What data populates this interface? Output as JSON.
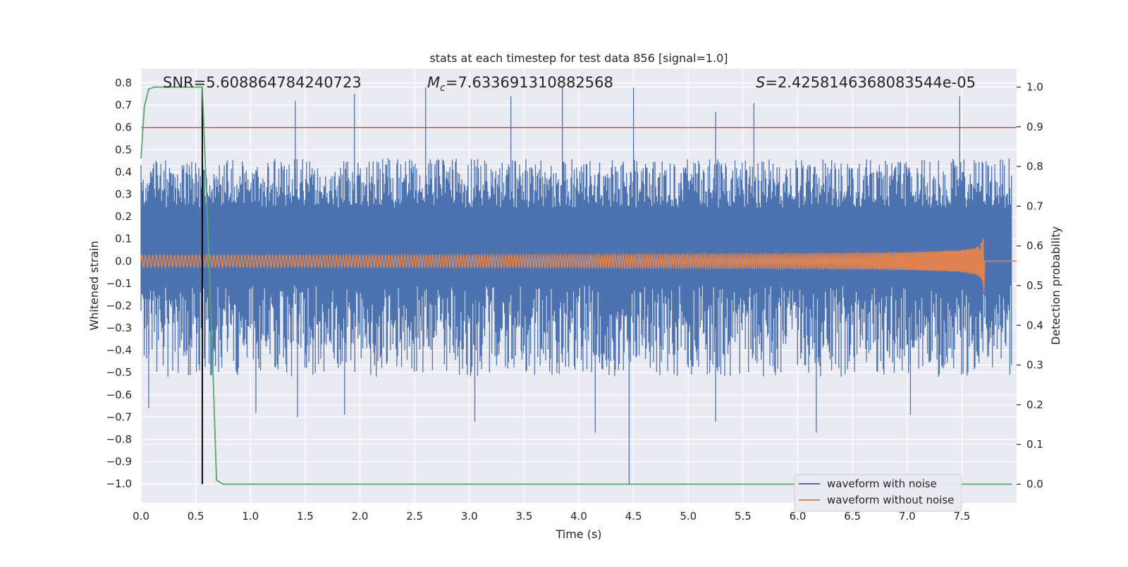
{
  "chart_data": {
    "type": "line",
    "title": "stats at each timestep for test data 856 [signal=1.0]",
    "xlabel": "Time (s)",
    "ylabel_left": "Whitened strain",
    "ylabel_right": "Detection probability",
    "xlim": [
      0.0,
      8.0
    ],
    "ylim_left": [
      -1.085,
      0.865
    ],
    "ylim_right": [
      -0.047,
      1.047
    ],
    "x_ticks": [
      "0.0",
      "0.5",
      "1.0",
      "1.5",
      "2.0",
      "2.5",
      "3.0",
      "3.5",
      "4.0",
      "4.5",
      "5.0",
      "5.5",
      "6.0",
      "6.5",
      "7.0",
      "7.5"
    ],
    "y_ticks_left": [
      "0.8",
      "0.7",
      "0.6",
      "0.5",
      "0.4",
      "0.3",
      "0.2",
      "0.1",
      "0.0",
      "−0.1",
      "−0.2",
      "−0.3",
      "−0.4",
      "−0.5",
      "−0.6",
      "−0.7",
      "−0.8",
      "−0.9",
      "−1.0"
    ],
    "y_ticks_right": [
      "1.0",
      "0.9",
      "0.8",
      "0.7",
      "0.6",
      "0.5",
      "0.4",
      "0.3",
      "0.2",
      "0.1",
      "0.0"
    ],
    "grid": true,
    "legend_position": "lower right",
    "annotations": {
      "snr": "SNR=5.608864784240723",
      "mc_symbol": "M",
      "mc_sub": "c",
      "mc_value": "=7.633691310882568",
      "s_symbol": "S",
      "s_value": "=2.4258146368083544e-05"
    },
    "threshold": {
      "value": 0.6,
      "axis": "left",
      "color": "#c44e52"
    },
    "marker_time": 0.56,
    "series": [
      {
        "name": "waveform with noise",
        "axis": "left",
        "color": "#4c72b0",
        "noise_band": {
          "core_low": -0.11,
          "core_high": 0.24,
          "typical_peak_high": 0.45,
          "typical_peak_low": -0.5
        },
        "spikes": [
          {
            "t": 1.41,
            "v": 0.72
          },
          {
            "t": 1.95,
            "v": 0.75
          },
          {
            "t": 2.6,
            "v": 0.78
          },
          {
            "t": 3.38,
            "v": 0.74
          },
          {
            "t": 3.85,
            "v": 0.78
          },
          {
            "t": 4.5,
            "v": 0.78
          },
          {
            "t": 5.25,
            "v": 0.67
          },
          {
            "t": 5.6,
            "v": 0.71
          },
          {
            "t": 7.48,
            "v": 0.74
          },
          {
            "t": 0.07,
            "v": -0.66
          },
          {
            "t": 1.05,
            "v": -0.68
          },
          {
            "t": 1.43,
            "v": -0.7
          },
          {
            "t": 1.86,
            "v": -0.69
          },
          {
            "t": 3.05,
            "v": -0.72
          },
          {
            "t": 4.15,
            "v": -0.77
          },
          {
            "t": 4.46,
            "v": -1.0
          },
          {
            "t": 5.25,
            "v": -0.72
          },
          {
            "t": 6.17,
            "v": -0.77
          },
          {
            "t": 7.03,
            "v": -0.69
          }
        ]
      },
      {
        "name": "waveform without noise",
        "axis": "left",
        "color": "#dd8452",
        "chirp": {
          "start_amplitude": 0.01,
          "peak_amplitude": 0.12,
          "start_frequency_hz": 30,
          "merger_time": 7.7,
          "end_time": 8.0
        }
      },
      {
        "name": "Detection probability",
        "axis": "right",
        "color": "#55a868",
        "x": [
          0.0,
          0.03,
          0.07,
          0.12,
          0.2,
          0.4,
          0.56,
          0.6,
          0.65,
          0.69,
          0.75,
          1.0,
          2.0,
          3.0,
          4.0,
          5.0,
          6.0,
          7.0,
          7.96
        ],
        "y": [
          0.82,
          0.95,
          0.995,
          1.0,
          1.0,
          1.0,
          1.0,
          0.72,
          0.35,
          0.01,
          0.0,
          0.0,
          0.0,
          0.0,
          0.0,
          0.0,
          0.0,
          0.0,
          0.0
        ]
      }
    ]
  },
  "colors": {
    "plot_background": "#eaeaf2",
    "grid": "#ffffff",
    "marker_line": "#000000",
    "text": "#262626"
  }
}
